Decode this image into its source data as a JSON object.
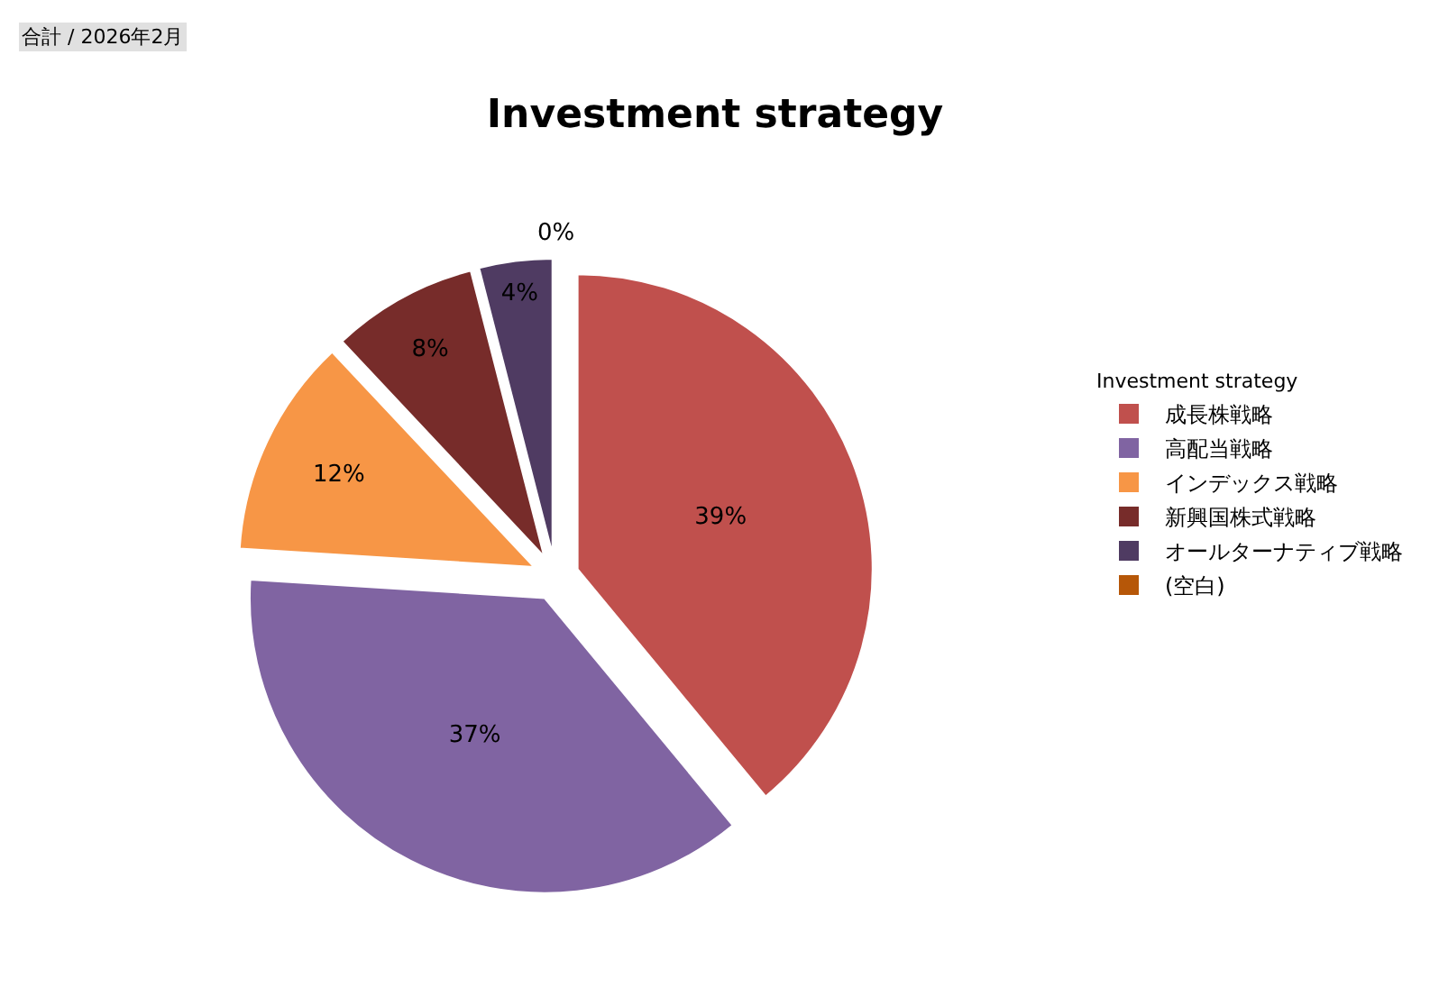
{
  "chart_data": {
    "type": "pie",
    "title": "Investment strategy",
    "legend_title": "Investment strategy",
    "annotations": [
      "合計 / 2026年2月"
    ],
    "categories": [
      "成長株戦略",
      "高配当戦略",
      "インデックス戦略",
      "新興国株式戦略",
      "オールターナティブ戦略",
      "(空白)"
    ],
    "values": [
      39,
      37,
      12,
      8,
      4,
      0
    ],
    "value_labels": [
      "39%",
      "37%",
      "12%",
      "8%",
      "4%",
      "0%"
    ],
    "colors": [
      "#c0504d",
      "#8064a2",
      "#f79646",
      "#772c2a",
      "#4f3b62",
      "#b65708"
    ],
    "legend": "right"
  }
}
